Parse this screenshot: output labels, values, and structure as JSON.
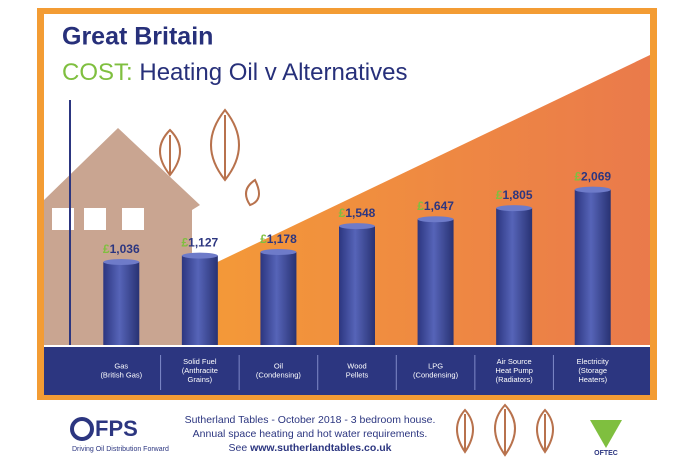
{
  "title": "Great Britain",
  "subtitle_highlight": "COST:",
  "subtitle": "Heating Oil v Alternatives",
  "chart_data": {
    "type": "bar",
    "categories": [
      "Gas\n(British Gas)",
      "Solid Fuel\n(Anthracite\nGrains)",
      "Oil\n(Condensing)",
      "Wood\nPellets",
      "LPG\n(Condensing)",
      "Air Source\nHeat Pump\n(Radiators)",
      "Electricity\n(Storage\nHeaters)"
    ],
    "values": [
      1036,
      1127,
      1178,
      1548,
      1647,
      1805,
      2069
    ],
    "value_labels": [
      "£1,036",
      "£1,127",
      "£1,178",
      "£1,548",
      "£1,647",
      "£1,805",
      "£2,069"
    ],
    "color": "#3d4a9e",
    "ylim": [
      -150,
      3350
    ]
  },
  "footer": {
    "logo": "FPS",
    "tagline": "Driving Oil Distribution Forward",
    "lines": [
      "Sutherland Tables - October 2018 - 3 bedroom house.",
      "Annual space heating and hot water requirements."
    ],
    "see": "See",
    "url": "www.sutherlandtables.co.uk",
    "badge": "OFTEC"
  }
}
